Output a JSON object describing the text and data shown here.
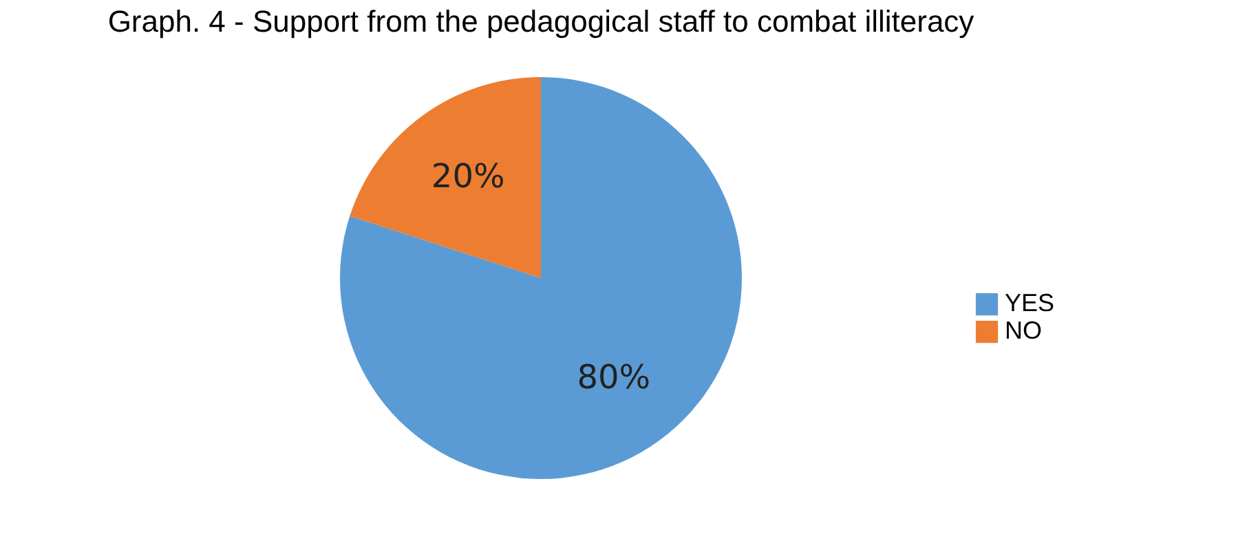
{
  "chart_data": {
    "type": "pie",
    "title": "Graph. 4 - Support from the pedagogical staff to combat illiteracy",
    "categories": [
      "YES",
      "NO"
    ],
    "values": [
      80,
      20
    ],
    "colors": [
      "#5b9bd5",
      "#ed7d31"
    ],
    "value_labels": [
      "80%",
      "20%"
    ],
    "legend": "right"
  }
}
